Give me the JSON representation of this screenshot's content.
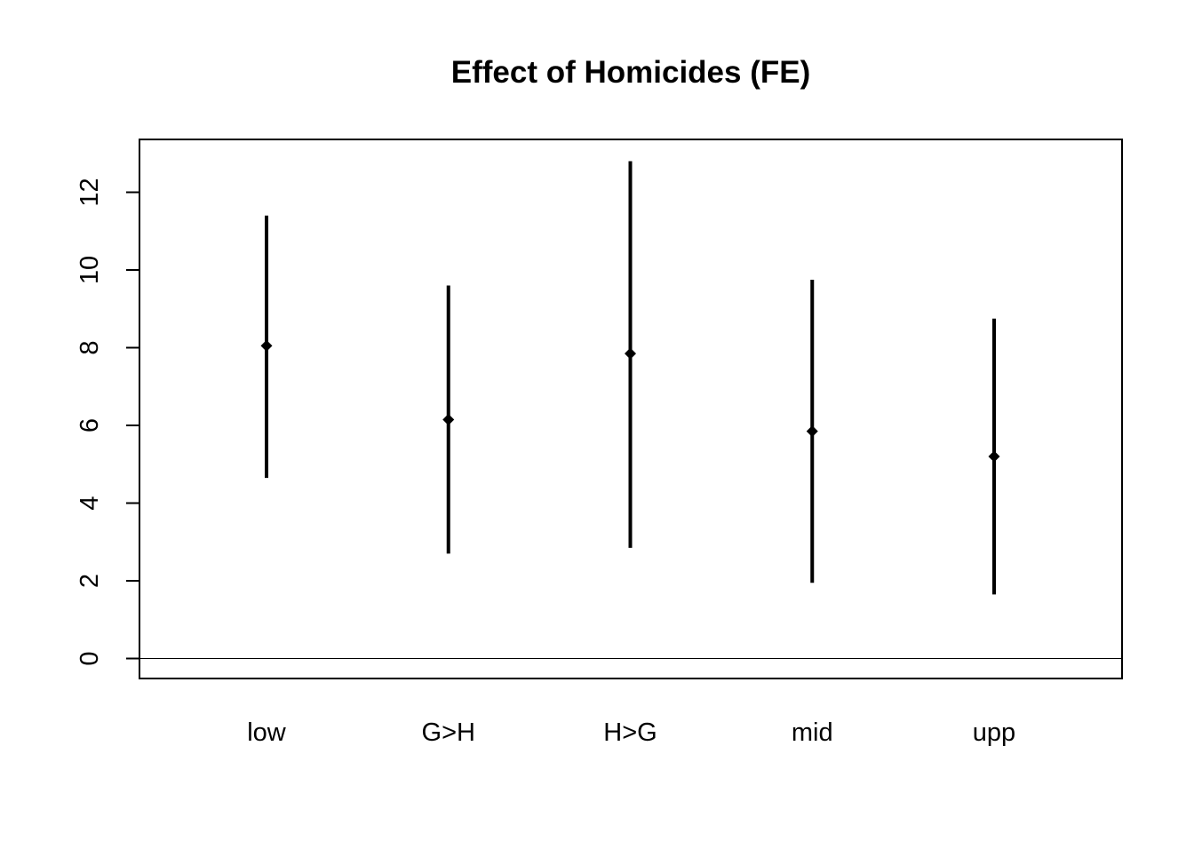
{
  "chart_data": {
    "type": "errorbar",
    "title": "Effect of Homicides (FE)",
    "xlabel": "",
    "ylabel": "",
    "categories": [
      "low",
      "G>H",
      "H>G",
      "mid",
      "upp"
    ],
    "estimates": [
      8.05,
      6.15,
      7.85,
      5.85,
      5.2
    ],
    "lower": [
      4.65,
      2.7,
      2.85,
      1.95,
      1.65
    ],
    "upper": [
      11.4,
      9.6,
      12.8,
      9.75,
      8.75
    ],
    "ylim": [
      -0.5,
      13.4
    ],
    "yticks": [
      0,
      2,
      4,
      6,
      8,
      10,
      12
    ],
    "reference_line": 0,
    "grid": false,
    "legend": "none",
    "colors": {
      "marks": "#000000",
      "axes": "#000000",
      "background": "#ffffff"
    }
  }
}
